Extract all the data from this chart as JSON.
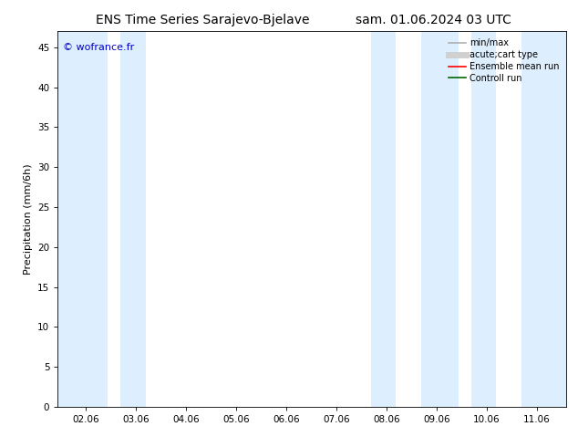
{
  "title_left": "ENS Time Series Sarajevo-Bjelave",
  "title_right": "sam. 01.06.2024 03 UTC",
  "ylabel": "Precipitation (mm/6h)",
  "watermark": "© wofrance.fr",
  "watermark_color": "#0000cc",
  "xlim_start": 1.5,
  "xlim_end": 11.65,
  "ylim": [
    0,
    47
  ],
  "yticks": [
    0,
    5,
    10,
    15,
    20,
    25,
    30,
    35,
    40,
    45
  ],
  "xtick_labels": [
    "02.06",
    "03.06",
    "04.06",
    "05.06",
    "06.06",
    "07.06",
    "08.06",
    "09.06",
    "10.06",
    "11.06"
  ],
  "xtick_positions": [
    2.06,
    3.06,
    4.06,
    5.06,
    6.06,
    7.06,
    8.06,
    9.06,
    10.06,
    11.06
  ],
  "shaded_bands": [
    [
      1.5,
      2.5
    ],
    [
      2.75,
      3.25
    ],
    [
      7.75,
      8.25
    ],
    [
      8.75,
      9.5
    ],
    [
      9.75,
      10.25
    ],
    [
      10.75,
      11.65
    ]
  ],
  "shaded_color": "#ddeeff",
  "background_color": "#ffffff",
  "plot_bg_color": "#ffffff",
  "legend_items": [
    {
      "label": "min/max",
      "color": "#b0b0b0",
      "lw": 1.2,
      "style": "solid"
    },
    {
      "label": "acute;cart type",
      "color": "#d0d0d0",
      "lw": 5,
      "style": "solid"
    },
    {
      "label": "Ensemble mean run",
      "color": "#ff0000",
      "lw": 1.2,
      "style": "solid"
    },
    {
      "label": "Controll run",
      "color": "#006600",
      "lw": 1.2,
      "style": "solid"
    }
  ],
  "title_fontsize": 10,
  "ylabel_fontsize": 8,
  "tick_fontsize": 7.5,
  "legend_fontsize": 7,
  "watermark_fontsize": 8
}
